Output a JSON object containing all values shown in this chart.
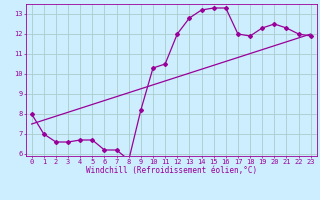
{
  "xlabel": "Windchill (Refroidissement éolien,°C)",
  "bg_color": "#cceeff",
  "line_color": "#990099",
  "grid_color": "#aacccc",
  "x_data": [
    0,
    1,
    2,
    3,
    4,
    5,
    6,
    7,
    8,
    9,
    10,
    11,
    12,
    13,
    14,
    15,
    16,
    17,
    18,
    19,
    20,
    21,
    22,
    23
  ],
  "y_jagged": [
    8.0,
    7.0,
    6.6,
    6.6,
    6.7,
    6.7,
    6.2,
    6.2,
    5.7,
    8.2,
    10.3,
    10.5,
    12.0,
    12.8,
    13.2,
    13.3,
    13.3,
    12.0,
    11.9,
    12.3,
    12.5,
    12.3,
    12.0,
    11.9
  ],
  "ylim": [
    5.9,
    13.5
  ],
  "xlim": [
    -0.5,
    23.5
  ],
  "yticks": [
    6,
    7,
    8,
    9,
    10,
    11,
    12,
    13
  ],
  "xticks": [
    0,
    1,
    2,
    3,
    4,
    5,
    6,
    7,
    8,
    9,
    10,
    11,
    12,
    13,
    14,
    15,
    16,
    17,
    18,
    19,
    20,
    21,
    22,
    23
  ],
  "xlabel_fontsize": 5.5,
  "tick_fontsize": 5.0
}
